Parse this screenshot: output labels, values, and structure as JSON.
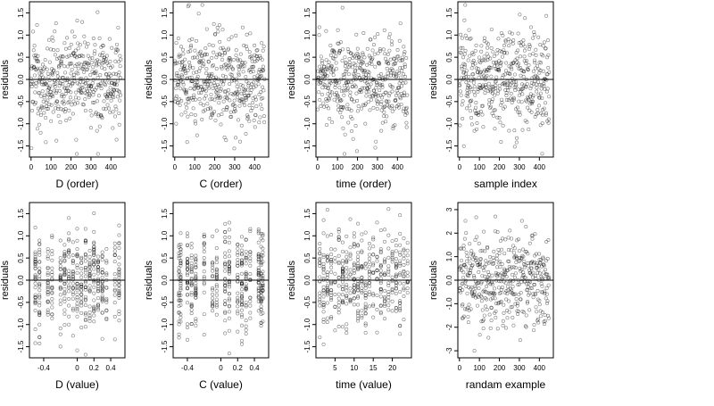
{
  "chart_data": [
    {
      "type": "scatter",
      "xlabel": "D (order)",
      "ylabel": "residuals",
      "xlim": [
        -8,
        470
      ],
      "ylim": [
        -1.75,
        1.75
      ],
      "xticks": [
        0,
        100,
        200,
        300,
        400
      ],
      "yticks": [
        -1.5,
        -1.0,
        -0.5,
        0.0,
        0.5,
        1.0,
        1.5
      ],
      "hline": 0,
      "xmode": "index",
      "n": 450,
      "ysd": 0.55,
      "ymax": 1.68,
      "seed": 11
    },
    {
      "type": "scatter",
      "xlabel": "C (order)",
      "ylabel": "residuals",
      "xlim": [
        -8,
        470
      ],
      "ylim": [
        -1.75,
        1.75
      ],
      "xticks": [
        0,
        100,
        200,
        300,
        400
      ],
      "yticks": [
        -1.5,
        -1.0,
        -0.5,
        0.0,
        0.5,
        1.0,
        1.5
      ],
      "hline": 0,
      "xmode": "index",
      "n": 450,
      "ysd": 0.55,
      "ymax": 1.68,
      "seed": 23
    },
    {
      "type": "scatter",
      "xlabel": "time (order)",
      "ylabel": "residuals",
      "xlim": [
        -8,
        470
      ],
      "ylim": [
        -1.75,
        1.75
      ],
      "xticks": [
        0,
        100,
        200,
        300,
        400
      ],
      "yticks": [
        -1.5,
        -1.0,
        -0.5,
        0.0,
        0.5,
        1.0,
        1.5
      ],
      "hline": 0,
      "xmode": "index",
      "n": 450,
      "ysd": 0.55,
      "ymax": 1.68,
      "seed": 37
    },
    {
      "type": "scatter",
      "xlabel": "sample index",
      "ylabel": "residuals",
      "xlim": [
        -8,
        470
      ],
      "ylim": [
        -1.75,
        1.75
      ],
      "xticks": [
        0,
        100,
        200,
        300,
        400
      ],
      "yticks": [
        -1.5,
        -1.0,
        -0.5,
        0.0,
        0.5,
        1.0,
        1.5
      ],
      "hline": 0,
      "xmode": "index",
      "n": 450,
      "ysd": 0.55,
      "ymax": 1.68,
      "seed": 41
    },
    {
      "type": "scatter",
      "xlabel": "D (value)",
      "ylabel": "residuals",
      "xlim": [
        -0.57,
        0.57
      ],
      "ylim": [
        -1.75,
        1.75
      ],
      "xticks": [
        -0.4,
        0.0,
        0.2,
        0.4
      ],
      "yticks": [
        -1.5,
        -1.0,
        -0.5,
        0.0,
        0.5,
        1.0,
        1.5
      ],
      "hline": 0,
      "xmode": "levels",
      "levels": [
        -0.5,
        -0.45,
        -0.35,
        -0.3,
        -0.2,
        -0.15,
        -0.1,
        -0.05,
        0.0,
        0.05,
        0.1,
        0.15,
        0.2,
        0.25,
        0.3,
        0.35,
        0.45,
        0.5
      ],
      "n": 450,
      "ysd": 0.55,
      "ymax": 1.68,
      "seed": 53
    },
    {
      "type": "scatter",
      "xlabel": "C (value)",
      "ylabel": "residuals",
      "xlim": [
        -0.57,
        0.57
      ],
      "ylim": [
        -1.75,
        1.75
      ],
      "xticks": [
        -0.4,
        0.0,
        0.2,
        0.4
      ],
      "yticks": [
        -1.5,
        -1.0,
        -0.5,
        0.0,
        0.5,
        1.0,
        1.5
      ],
      "hline": 0,
      "xmode": "levels",
      "levels": [
        -0.5,
        -0.48,
        -0.4,
        -0.35,
        -0.3,
        -0.2,
        -0.1,
        -0.05,
        0.05,
        0.1,
        0.2,
        0.25,
        0.3,
        0.35,
        0.45,
        0.48,
        0.5
      ],
      "n": 450,
      "ysd": 0.55,
      "ymax": 1.68,
      "seed": 67
    },
    {
      "type": "scatter",
      "xlabel": "time (value)",
      "ylabel": "residuals",
      "xlim": [
        0,
        25
      ],
      "ylim": [
        -1.75,
        1.75
      ],
      "xticks": [
        5,
        10,
        15,
        20
      ],
      "yticks": [
        -1.5,
        -1.0,
        -0.5,
        0.0,
        0.5,
        1.0,
        1.5
      ],
      "hline": 0,
      "xmode": "levels",
      "levels": [
        1,
        2,
        3,
        4,
        5,
        6,
        7,
        8,
        9,
        10,
        11,
        12,
        13,
        14,
        15,
        16,
        17,
        18,
        19,
        20,
        21,
        22,
        23,
        24
      ],
      "n": 450,
      "ysd": 0.55,
      "ymax": 1.68,
      "seed": 79
    },
    {
      "type": "scatter",
      "xlabel": "randam example",
      "ylabel": "residuals",
      "xlim": [
        -8,
        470
      ],
      "ylim": [
        -3.3,
        3.3
      ],
      "xticks": [
        0,
        100,
        200,
        300,
        400
      ],
      "yticks": [
        -3,
        -2,
        -1,
        0,
        1,
        2,
        3
      ],
      "hline": 0,
      "xmode": "index",
      "n": 450,
      "ysd": 1.0,
      "ymax": 3.0,
      "seed": 97
    }
  ]
}
